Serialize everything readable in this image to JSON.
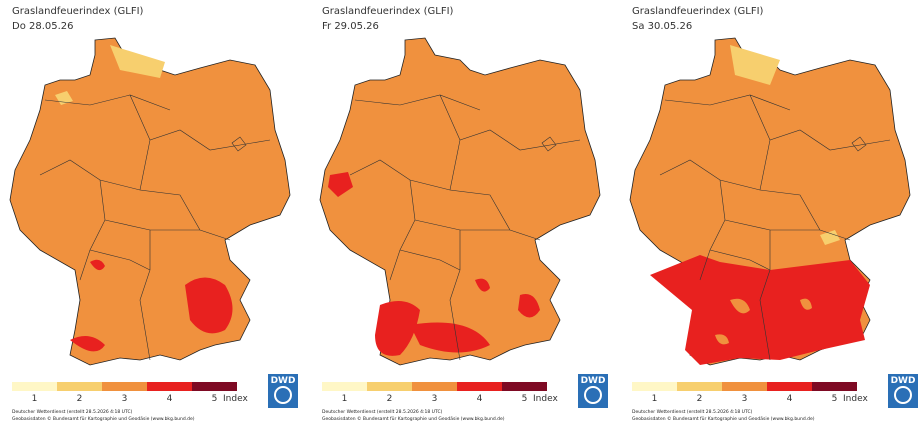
{
  "panels": [
    {
      "title": "Graslandfeuerindex (GLFI)",
      "date": "Do 28.05.26",
      "legend": {
        "levels": [
          {
            "label": "1",
            "color": "#fff7c6"
          },
          {
            "label": "2",
            "color": "#f7cf6e"
          },
          {
            "label": "3",
            "color": "#f0913e"
          },
          {
            "label": "4",
            "color": "#e8211f"
          },
          {
            "label": "5",
            "color": "#7e0a24"
          }
        ],
        "unit": "Index"
      },
      "logo": "DWD",
      "credit": "Deutscher Wetterdienst (erstellt 28.5.2026 4:18 UTC)",
      "source": "Geobasisdaten © Bundesamt für Kartographie und Geodäsie (www.bkg.bund.de)"
    },
    {
      "title": "Graslandfeuerindex (GLFI)",
      "date": "Fr 29.05.26",
      "legend": {
        "levels": [
          {
            "label": "1",
            "color": "#fff7c6"
          },
          {
            "label": "2",
            "color": "#f7cf6e"
          },
          {
            "label": "3",
            "color": "#f0913e"
          },
          {
            "label": "4",
            "color": "#e8211f"
          },
          {
            "label": "5",
            "color": "#7e0a24"
          }
        ],
        "unit": "Index"
      },
      "logo": "DWD",
      "credit": "Deutscher Wetterdienst (erstellt 28.5.2026 4:18 UTC)",
      "source": "Geobasisdaten © Bundesamt für Kartographie und Geodäsie (www.bkg.bund.de)"
    },
    {
      "title": "Graslandfeuerindex (GLFI)",
      "date": "Sa 30.05.26",
      "legend": {
        "levels": [
          {
            "label": "1",
            "color": "#fff7c6"
          },
          {
            "label": "2",
            "color": "#f7cf6e"
          },
          {
            "label": "3",
            "color": "#f0913e"
          },
          {
            "label": "4",
            "color": "#e8211f"
          },
          {
            "label": "5",
            "color": "#7e0a24"
          }
        ],
        "unit": "Index"
      },
      "logo": "DWD",
      "credit": "Deutscher Wetterdienst (erstellt 28.5.2026 4:18 UTC)",
      "source": "Geobasisdaten © Bundesamt für Kartographie und Geodäsie (www.bkg.bund.de)"
    }
  ]
}
